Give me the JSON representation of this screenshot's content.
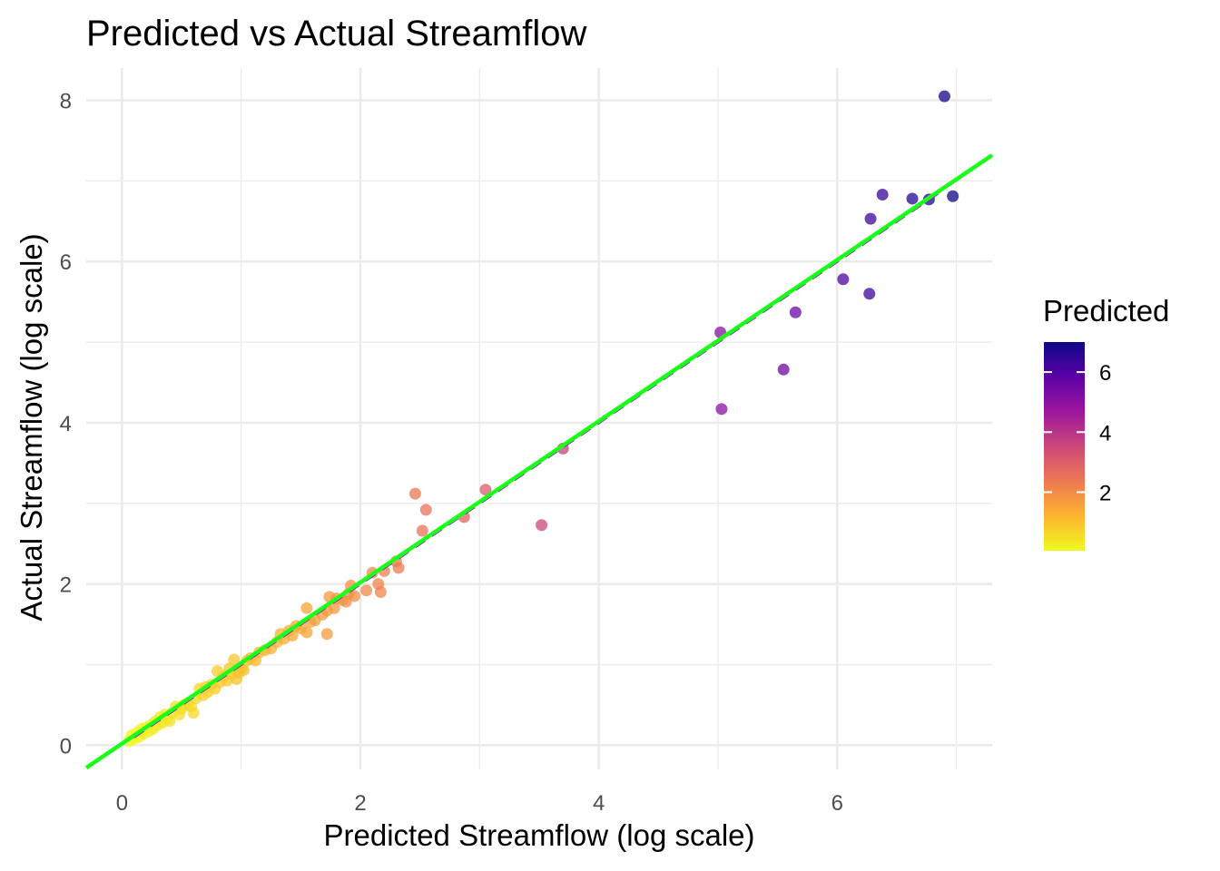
{
  "chart_data": {
    "type": "scatter",
    "title": "Predicted vs Actual Streamflow",
    "xlabel": "Predicted Streamflow (log scale)",
    "ylabel": "Actual Streamflow (log scale)",
    "xlim": [
      -0.3,
      7.3
    ],
    "ylim": [
      -0.3,
      8.4
    ],
    "x_ticks": [
      0,
      2,
      4,
      6
    ],
    "y_ticks": [
      0,
      2,
      4,
      6,
      8
    ],
    "x_tick_labels": [
      "0",
      "2",
      "4",
      "6"
    ],
    "y_tick_labels": [
      "0",
      "2",
      "4",
      "6",
      "8"
    ],
    "grid": true,
    "legend": {
      "title": "Predicted",
      "position": "right",
      "range": [
        0.05,
        7.0
      ],
      "ticks": [
        2,
        4,
        6
      ],
      "tick_labels": [
        "2",
        "4",
        "6"
      ],
      "colormap": "plasma",
      "colors": [
        "#f0f921",
        "#fdb42f",
        "#ed7953",
        "#cc4778",
        "#9c179e",
        "#5c01a6",
        "#0d0887"
      ]
    },
    "reference_line": {
      "name": "y = x",
      "style": "dashed",
      "color": "#8b10c8",
      "slope": 1,
      "intercept": 0
    },
    "fit_line": {
      "name": "fit",
      "style": "solid",
      "color": "#1aff1a",
      "slope": 1.0,
      "intercept": 0.02
    },
    "points": [
      [
        0.06,
        0.05
      ],
      [
        0.08,
        0.12
      ],
      [
        0.1,
        0.08
      ],
      [
        0.12,
        0.15
      ],
      [
        0.14,
        0.1
      ],
      [
        0.16,
        0.2
      ],
      [
        0.18,
        0.14
      ],
      [
        0.2,
        0.22
      ],
      [
        0.22,
        0.17
      ],
      [
        0.24,
        0.25
      ],
      [
        0.26,
        0.2
      ],
      [
        0.28,
        0.3
      ],
      [
        0.3,
        0.25
      ],
      [
        0.32,
        0.35
      ],
      [
        0.34,
        0.28
      ],
      [
        0.36,
        0.38
      ],
      [
        0.38,
        0.33
      ],
      [
        0.4,
        0.3
      ],
      [
        0.42,
        0.4
      ],
      [
        0.45,
        0.48
      ],
      [
        0.48,
        0.38
      ],
      [
        0.5,
        0.45
      ],
      [
        0.52,
        0.5
      ],
      [
        0.55,
        0.52
      ],
      [
        0.58,
        0.48
      ],
      [
        0.6,
        0.4
      ],
      [
        0.62,
        0.58
      ],
      [
        0.65,
        0.7
      ],
      [
        0.68,
        0.62
      ],
      [
        0.7,
        0.72
      ],
      [
        0.72,
        0.66
      ],
      [
        0.75,
        0.75
      ],
      [
        0.78,
        0.7
      ],
      [
        0.8,
        0.92
      ],
      [
        0.82,
        0.78
      ],
      [
        0.85,
        0.85
      ],
      [
        0.88,
        0.8
      ],
      [
        0.9,
        0.95
      ],
      [
        0.92,
        0.88
      ],
      [
        0.94,
        1.06
      ],
      [
        0.96,
        0.82
      ],
      [
        0.98,
        0.9
      ],
      [
        1.0,
        0.96
      ],
      [
        1.02,
        0.93
      ],
      [
        1.05,
        1.05
      ],
      [
        1.08,
        1.08
      ],
      [
        1.12,
        1.05
      ],
      [
        1.15,
        1.15
      ],
      [
        1.2,
        1.18
      ],
      [
        1.25,
        1.2
      ],
      [
        1.3,
        1.28
      ],
      [
        1.33,
        1.38
      ],
      [
        1.36,
        1.32
      ],
      [
        1.4,
        1.42
      ],
      [
        1.43,
        1.36
      ],
      [
        1.46,
        1.48
      ],
      [
        1.5,
        1.45
      ],
      [
        1.55,
        1.4
      ],
      [
        1.58,
        1.53
      ],
      [
        1.62,
        1.55
      ],
      [
        1.55,
        1.7
      ],
      [
        1.68,
        1.62
      ],
      [
        1.72,
        1.67
      ],
      [
        1.72,
        1.38
      ],
      [
        1.74,
        1.84
      ],
      [
        1.78,
        1.7
      ],
      [
        1.8,
        1.82
      ],
      [
        1.85,
        1.8
      ],
      [
        1.9,
        1.88
      ],
      [
        1.92,
        1.98
      ],
      [
        1.95,
        1.85
      ],
      [
        1.88,
        1.78
      ],
      [
        2.05,
        1.92
      ],
      [
        2.1,
        2.14
      ],
      [
        2.15,
        2.0
      ],
      [
        2.17,
        1.9
      ],
      [
        2.2,
        2.16
      ],
      [
        2.3,
        2.28
      ],
      [
        2.32,
        2.2
      ],
      [
        2.46,
        3.12
      ],
      [
        2.52,
        2.66
      ],
      [
        2.55,
        2.92
      ],
      [
        2.87,
        2.83
      ],
      [
        3.05,
        3.17
      ],
      [
        3.52,
        2.73
      ],
      [
        3.7,
        3.68
      ],
      [
        5.02,
        5.12
      ],
      [
        5.03,
        4.17
      ],
      [
        5.55,
        4.66
      ],
      [
        5.65,
        5.37
      ],
      [
        6.05,
        5.78
      ],
      [
        6.27,
        5.6
      ],
      [
        6.28,
        6.53
      ],
      [
        6.38,
        6.83
      ],
      [
        6.63,
        6.78
      ],
      [
        6.77,
        6.77
      ],
      [
        6.9,
        8.05
      ],
      [
        6.97,
        6.81
      ]
    ]
  }
}
